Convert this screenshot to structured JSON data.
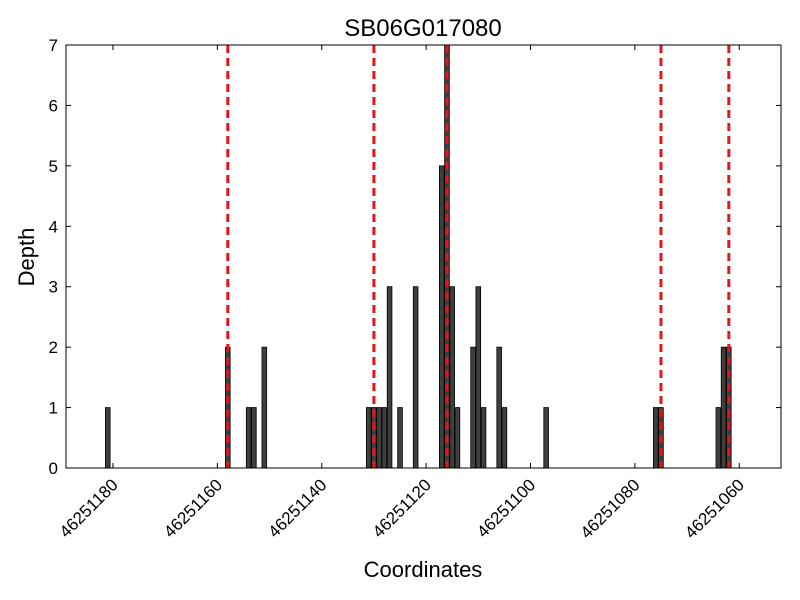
{
  "chart_data": {
    "type": "bar",
    "title": "SB06G017080",
    "xlabel": "Coordinates",
    "ylabel": "Depth",
    "x_axis_reversed": true,
    "xlim": [
      46251189,
      46251052
    ],
    "ylim": [
      0,
      7
    ],
    "xticks": [
      46251180,
      46251160,
      46251140,
      46251120,
      46251100,
      46251080,
      46251060
    ],
    "yticks": [
      0,
      1,
      2,
      3,
      4,
      5,
      6,
      7
    ],
    "grid": false,
    "bar_color": "#3f3f3f",
    "bars": [
      {
        "x": 46251181,
        "depth": 1
      },
      {
        "x": 46251158,
        "depth": 2
      },
      {
        "x": 46251154,
        "depth": 1
      },
      {
        "x": 46251153,
        "depth": 1
      },
      {
        "x": 46251151,
        "depth": 2
      },
      {
        "x": 46251131,
        "depth": 1
      },
      {
        "x": 46251130,
        "depth": 1
      },
      {
        "x": 46251129,
        "depth": 1
      },
      {
        "x": 46251128,
        "depth": 1
      },
      {
        "x": 46251127,
        "depth": 3
      },
      {
        "x": 46251125,
        "depth": 1
      },
      {
        "x": 46251122,
        "depth": 3
      },
      {
        "x": 46251117,
        "depth": 5
      },
      {
        "x": 46251116,
        "depth": 7
      },
      {
        "x": 46251115,
        "depth": 3
      },
      {
        "x": 46251114,
        "depth": 1
      },
      {
        "x": 46251111,
        "depth": 2
      },
      {
        "x": 46251110,
        "depth": 3
      },
      {
        "x": 46251109,
        "depth": 1
      },
      {
        "x": 46251106,
        "depth": 2
      },
      {
        "x": 46251105,
        "depth": 1
      },
      {
        "x": 46251097,
        "depth": 1
      },
      {
        "x": 46251076,
        "depth": 1
      },
      {
        "x": 46251075,
        "depth": 1
      },
      {
        "x": 46251064,
        "depth": 1
      },
      {
        "x": 46251063,
        "depth": 2
      },
      {
        "x": 46251062,
        "depth": 2
      }
    ],
    "reference_lines": {
      "color": "#e8141b",
      "style": "dashed",
      "x": [
        46251158,
        46251130,
        46251116,
        46251075,
        46251062
      ]
    }
  }
}
